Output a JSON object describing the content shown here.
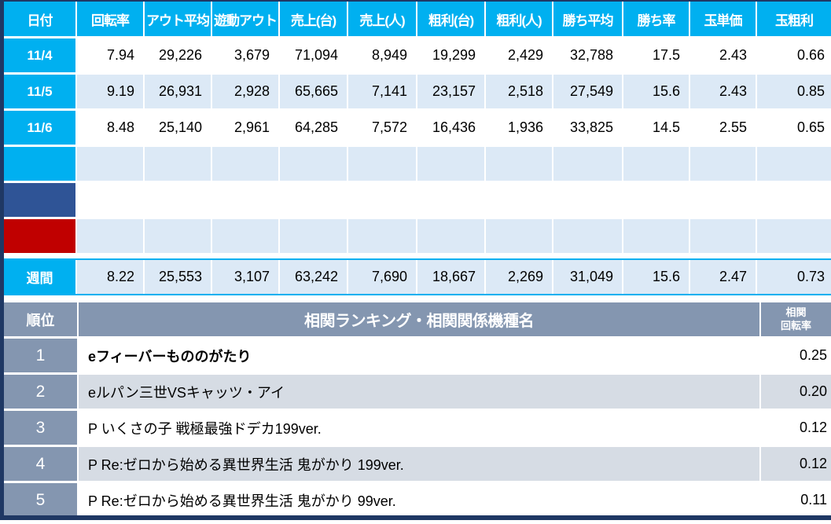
{
  "colors": {
    "accent_cyan": "#00B0F0",
    "row_light_blue": "#DCE9F6",
    "label_navy": "#2F5496",
    "label_red": "#C00000",
    "ranking_header_gray_blue": "#8496B0",
    "ranking_zebra_gray": "#D6DCE4",
    "frame_navy": "#1F3864"
  },
  "daily_table": {
    "columns": [
      "日付",
      "回転率",
      "アウト平均",
      "遊動アウト",
      "売上(台)",
      "売上(人)",
      "粗利(台)",
      "粗利(人)",
      "勝ち平均",
      "勝ち率",
      "玉単価",
      "玉粗利"
    ],
    "rows": [
      {
        "label": "11/4",
        "label_color": "cyan",
        "zebra": false,
        "values": [
          "7.94",
          "29,226",
          "3,679",
          "71,094",
          "8,949",
          "19,299",
          "2,429",
          "32,788",
          "17.5",
          "2.43",
          "0.66"
        ]
      },
      {
        "label": "11/5",
        "label_color": "cyan",
        "zebra": true,
        "values": [
          "9.19",
          "26,931",
          "2,928",
          "65,665",
          "7,141",
          "23,157",
          "2,518",
          "27,549",
          "15.6",
          "2.43",
          "0.85"
        ]
      },
      {
        "label": "11/6",
        "label_color": "cyan",
        "zebra": false,
        "values": [
          "8.48",
          "25,140",
          "2,961",
          "64,285",
          "7,572",
          "16,436",
          "1,936",
          "33,825",
          "14.5",
          "2.55",
          "0.65"
        ]
      },
      {
        "label": "",
        "label_color": "cyan",
        "zebra": true,
        "values": [
          "",
          "",
          "",
          "",
          "",
          "",
          "",
          "",
          "",
          "",
          ""
        ]
      },
      {
        "label": "",
        "label_color": "navy",
        "zebra": false,
        "values": [
          "",
          "",
          "",
          "",
          "",
          "",
          "",
          "",
          "",
          "",
          ""
        ]
      },
      {
        "label": "",
        "label_color": "red",
        "zebra": true,
        "values": [
          "",
          "",
          "",
          "",
          "",
          "",
          "",
          "",
          "",
          "",
          ""
        ]
      }
    ],
    "summary": {
      "label": "週間",
      "values": [
        "8.22",
        "25,553",
        "3,107",
        "63,242",
        "7,690",
        "18,667",
        "2,269",
        "31,049",
        "15.6",
        "2.47",
        "0.73"
      ]
    }
  },
  "ranking_table": {
    "rank_header": "順位",
    "title_header": "相関ランキング・相関関係機種名",
    "value_header_line1": "相関",
    "value_header_line2": "回転率",
    "rows": [
      {
        "rank": "1",
        "name": "eフィーバーもののがたり",
        "value": "0.25",
        "zebra": false,
        "bold": true
      },
      {
        "rank": "2",
        "name": "eルパン三世VSキャッツ・アイ",
        "value": "0.20",
        "zebra": true,
        "bold": false
      },
      {
        "rank": "3",
        "name": "P いくさの子 戦極最強ドデカ199ver.",
        "value": "0.12",
        "zebra": false,
        "bold": false
      },
      {
        "rank": "4",
        "name": "P Re:ゼロから始める異世界生活 鬼がかり 199ver.",
        "value": "0.12",
        "zebra": true,
        "bold": false
      },
      {
        "rank": "5",
        "name": "P Re:ゼロから始める異世界生活 鬼がかり 99ver.",
        "value": "0.11",
        "zebra": false,
        "bold": false
      }
    ]
  }
}
